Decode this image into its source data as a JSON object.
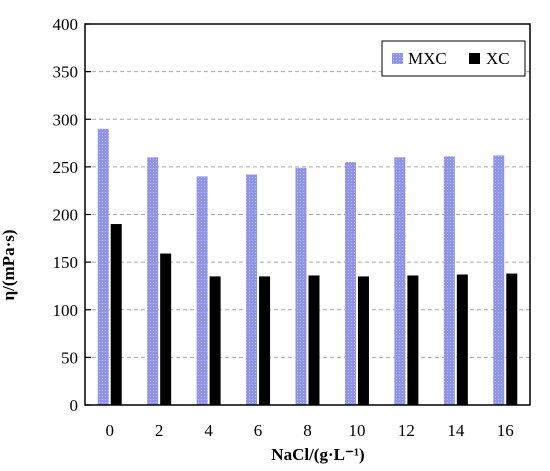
{
  "chart_data": {
    "type": "bar",
    "xlabel": "NaCl/(g·L⁻¹)",
    "ylabel": "η/(mPa·s)",
    "categories": [
      "0",
      "2",
      "4",
      "6",
      "8",
      "10",
      "12",
      "14",
      "16"
    ],
    "ylim": [
      0,
      400
    ],
    "yticks": [
      "0",
      "50",
      "100",
      "150",
      "200",
      "250",
      "300",
      "350",
      "400"
    ],
    "grid": "horizontal dashed",
    "legend": "top-right",
    "series": [
      {
        "name": "MXC",
        "color": "#8f95e4",
        "values": [
          290,
          260,
          240,
          242,
          249,
          255,
          260,
          261,
          262
        ]
      },
      {
        "name": "XC",
        "color": "#000000",
        "values": [
          190,
          159,
          135,
          135,
          136,
          135,
          136,
          137,
          138
        ]
      }
    ]
  }
}
